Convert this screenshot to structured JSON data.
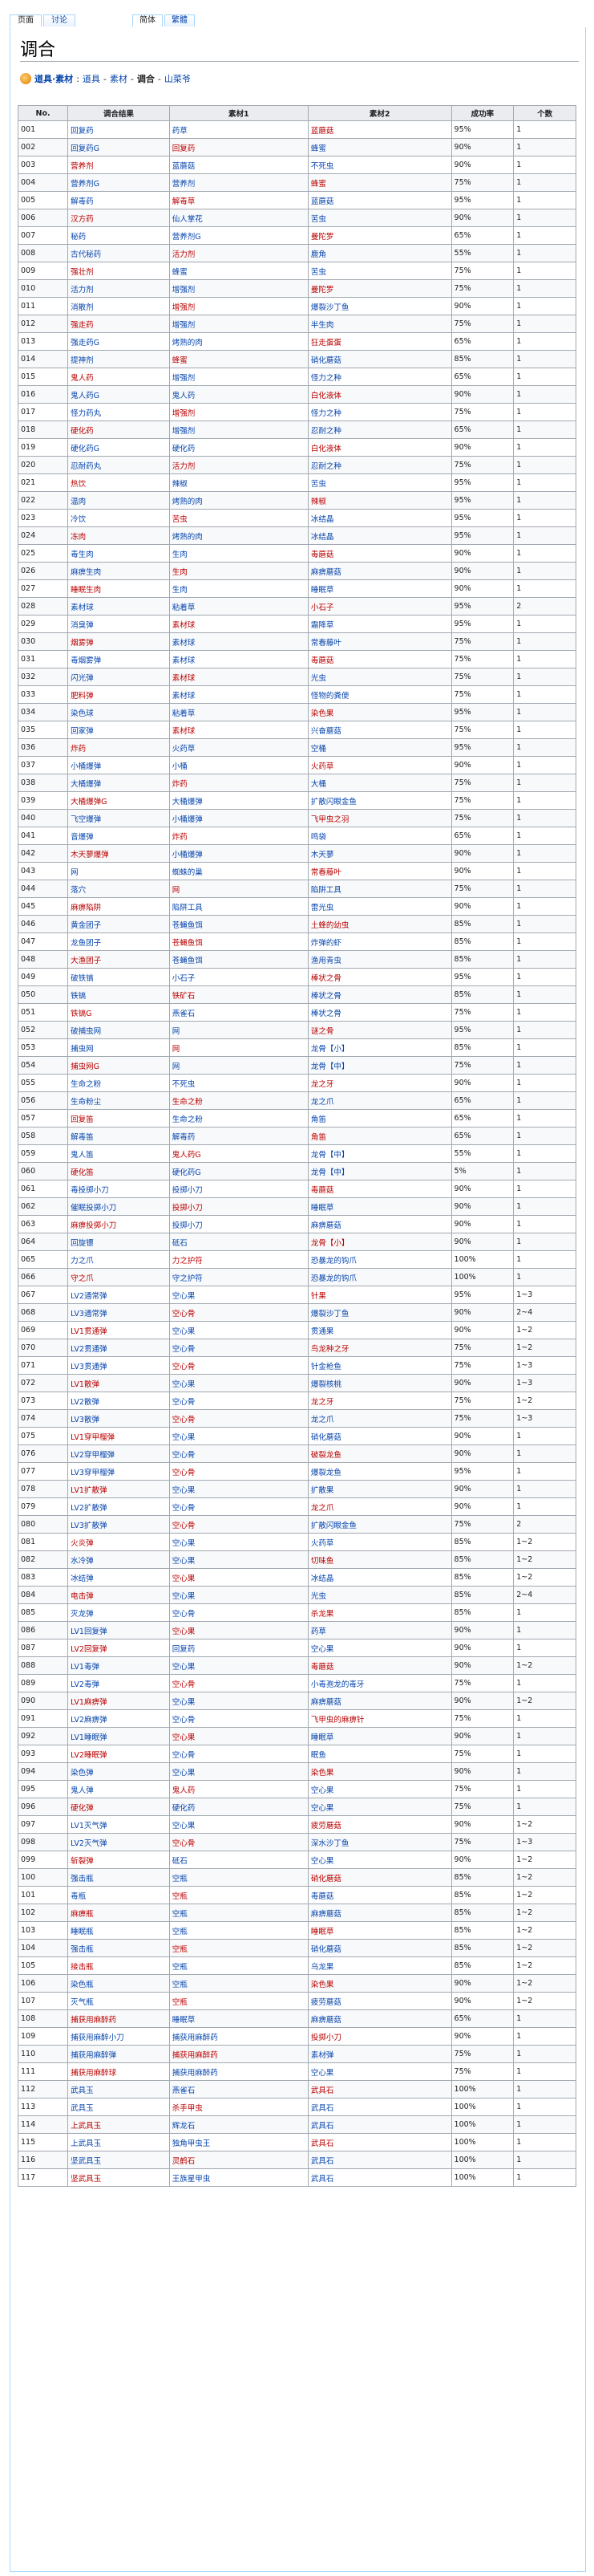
{
  "tabs": {
    "page": "页面",
    "talk": "讨论",
    "simplified": "简体",
    "traditional": "繁體"
  },
  "page_title": "调合",
  "breadcrumb": {
    "root": "道具·素材",
    "sep1": ":",
    "l1": "道具",
    "sep2": "-",
    "l2": "素材",
    "sep3": "-",
    "current": "调合",
    "sep4": "-",
    "l3": "山菜爷"
  },
  "table": {
    "headers": [
      "No.",
      "调合结果",
      "素材1",
      "素材2",
      "成功率",
      "个数"
    ],
    "rows": [
      [
        "001",
        "回复药",
        "药草",
        "蓝蘑菇",
        "95%",
        "1"
      ],
      [
        "002",
        "回复药G",
        "回复药",
        "蜂蜜",
        "90%",
        "1"
      ],
      [
        "003",
        "营养剂",
        "蓝蘑菇",
        "不死虫",
        "90%",
        "1"
      ],
      [
        "004",
        "营养剂G",
        "营养剂",
        "蜂蜜",
        "75%",
        "1"
      ],
      [
        "005",
        "解毒药",
        "解毒草",
        "蓝蘑菇",
        "95%",
        "1"
      ],
      [
        "006",
        "汉方药",
        "仙人掌花",
        "苦虫",
        "90%",
        "1"
      ],
      [
        "007",
        "秘药",
        "营养剂G",
        "曼陀罗",
        "65%",
        "1"
      ],
      [
        "008",
        "古代秘药",
        "活力剂",
        "鹿角",
        "55%",
        "1"
      ],
      [
        "009",
        "强壮剂",
        "蜂蜜",
        "苦虫",
        "75%",
        "1"
      ],
      [
        "010",
        "活力剂",
        "增强剂",
        "曼陀罗",
        "75%",
        "1"
      ],
      [
        "011",
        "消散剂",
        "增强剂",
        "爆裂沙丁鱼",
        "90%",
        "1"
      ],
      [
        "012",
        "强走药",
        "增强剂",
        "半生肉",
        "75%",
        "1"
      ],
      [
        "013",
        "强走药G",
        "烤熟的肉",
        "狂走蛋蛋",
        "65%",
        "1"
      ],
      [
        "014",
        "提神剂",
        "蜂蜜",
        "硝化蘑菇",
        "85%",
        "1"
      ],
      [
        "015",
        "鬼人药",
        "增强剂",
        "怪力之种",
        "65%",
        "1"
      ],
      [
        "016",
        "鬼人药G",
        "鬼人药",
        "白化液体",
        "90%",
        "1"
      ],
      [
        "017",
        "怪力药丸",
        "增强剂",
        "怪力之种",
        "75%",
        "1"
      ],
      [
        "018",
        "硬化药",
        "增强剂",
        "忍耐之种",
        "65%",
        "1"
      ],
      [
        "019",
        "硬化药G",
        "硬化药",
        "白化液体",
        "90%",
        "1"
      ],
      [
        "020",
        "忍耐药丸",
        "活力剂",
        "忍耐之种",
        "75%",
        "1"
      ],
      [
        "021",
        "热饮",
        "辣椒",
        "苦虫",
        "95%",
        "1"
      ],
      [
        "022",
        "温肉",
        "烤熟的肉",
        "辣椒",
        "95%",
        "1"
      ],
      [
        "023",
        "冷饮",
        "苦虫",
        "冰结晶",
        "95%",
        "1"
      ],
      [
        "024",
        "冻肉",
        "烤熟的肉",
        "冰结晶",
        "95%",
        "1"
      ],
      [
        "025",
        "毒生肉",
        "生肉",
        "毒蘑菇",
        "90%",
        "1"
      ],
      [
        "026",
        "麻痹生肉",
        "生肉",
        "麻痹蘑菇",
        "90%",
        "1"
      ],
      [
        "027",
        "睡眠生肉",
        "生肉",
        "睡眠草",
        "90%",
        "1"
      ],
      [
        "028",
        "素材球",
        "粘着草",
        "小石子",
        "95%",
        "2"
      ],
      [
        "029",
        "消臭弹",
        "素材球",
        "霜降草",
        "95%",
        "1"
      ],
      [
        "030",
        "烟雾弹",
        "素材球",
        "常春藤叶",
        "75%",
        "1"
      ],
      [
        "031",
        "毒烟雾弹",
        "素材球",
        "毒蘑菇",
        "75%",
        "1"
      ],
      [
        "032",
        "闪光弹",
        "素材球",
        "光虫",
        "75%",
        "1"
      ],
      [
        "033",
        "肥料弹",
        "素材球",
        "怪物的粪便",
        "75%",
        "1"
      ],
      [
        "034",
        "染色球",
        "粘着草",
        "染色果",
        "95%",
        "1"
      ],
      [
        "035",
        "回家弹",
        "素材球",
        "兴奋蘑菇",
        "75%",
        "1"
      ],
      [
        "036",
        "炸药",
        "火药草",
        "空桶",
        "95%",
        "1"
      ],
      [
        "037",
        "小桶爆弹",
        "小桶",
        "火药草",
        "90%",
        "1"
      ],
      [
        "038",
        "大桶爆弹",
        "炸药",
        "大桶",
        "75%",
        "1"
      ],
      [
        "039",
        "大桶爆弹G",
        "大桶爆弹",
        "扩散闪眼金鱼",
        "75%",
        "1"
      ],
      [
        "040",
        "飞空爆弹",
        "小桶爆弹",
        "飞甲虫之羽",
        "75%",
        "1"
      ],
      [
        "041",
        "音爆弹",
        "炸药",
        "鸣袋",
        "65%",
        "1"
      ],
      [
        "042",
        "木天蓼爆弹",
        "小桶爆弹",
        "木天蓼",
        "90%",
        "1"
      ],
      [
        "043",
        "网",
        "蜘蛛的巢",
        "常春藤叶",
        "90%",
        "1"
      ],
      [
        "044",
        "落穴",
        "网",
        "陷阱工具",
        "75%",
        "1"
      ],
      [
        "045",
        "麻痹陷阱",
        "陷阱工具",
        "雷光虫",
        "90%",
        "1"
      ],
      [
        "046",
        "黄金团子",
        "苍蝇鱼饵",
        "土蜂的幼虫",
        "85%",
        "1"
      ],
      [
        "047",
        "龙鱼团子",
        "苍蝇鱼饵",
        "炸弹的虾",
        "85%",
        "1"
      ],
      [
        "048",
        "大渔团子",
        "苍蝇鱼饵",
        "渔用青虫",
        "85%",
        "1"
      ],
      [
        "049",
        "破铁镐",
        "小石子",
        "棒状之骨",
        "95%",
        "1"
      ],
      [
        "050",
        "铁镐",
        "铁矿石",
        "棒状之骨",
        "85%",
        "1"
      ],
      [
        "051",
        "铁镐G",
        "燕雀石",
        "棒状之骨",
        "75%",
        "1"
      ],
      [
        "052",
        "破捕虫网",
        "网",
        "谜之骨",
        "95%",
        "1"
      ],
      [
        "053",
        "捕虫网",
        "网",
        "龙骨【小】",
        "85%",
        "1"
      ],
      [
        "054",
        "捕虫网G",
        "网",
        "龙骨【中】",
        "75%",
        "1"
      ],
      [
        "055",
        "生命之粉",
        "不死虫",
        "龙之牙",
        "90%",
        "1"
      ],
      [
        "056",
        "生命粉尘",
        "生命之粉",
        "龙之爪",
        "65%",
        "1"
      ],
      [
        "057",
        "回复笛",
        "生命之粉",
        "角笛",
        "65%",
        "1"
      ],
      [
        "058",
        "解毒笛",
        "解毒药",
        "角笛",
        "65%",
        "1"
      ],
      [
        "059",
        "鬼人笛",
        "鬼人药G",
        "龙骨【中】",
        "55%",
        "1"
      ],
      [
        "060",
        "硬化笛",
        "硬化药G",
        "龙骨【中】",
        "5%",
        "1"
      ],
      [
        "061",
        "毒投掷小刀",
        "投掷小刀",
        "毒蘑菇",
        "90%",
        "1"
      ],
      [
        "062",
        "催眠投掷小刀",
        "投掷小刀",
        "睡眠草",
        "90%",
        "1"
      ],
      [
        "063",
        "麻痹投掷小刀",
        "投掷小刀",
        "麻痹蘑菇",
        "90%",
        "1"
      ],
      [
        "064",
        "回旋镖",
        "砥石",
        "龙骨【小】",
        "90%",
        "1"
      ],
      [
        "065",
        "力之爪",
        "力之护符",
        "恐暴龙的钩爪",
        "100%",
        "1"
      ],
      [
        "066",
        "守之爪",
        "守之护符",
        "恐暴龙的钩爪",
        "100%",
        "1"
      ],
      [
        "067",
        "LV2通常弹",
        "空心果",
        "针果",
        "95%",
        "1~3"
      ],
      [
        "068",
        "LV3通常弹",
        "空心骨",
        "爆裂沙丁鱼",
        "90%",
        "2~4"
      ],
      [
        "069",
        "LV1贯通弹",
        "空心果",
        "贯通果",
        "90%",
        "1~2"
      ],
      [
        "070",
        "LV2贯通弹",
        "空心骨",
        "鸟龙种之牙",
        "75%",
        "1~2"
      ],
      [
        "071",
        "LV3贯通弹",
        "空心骨",
        "针金枪鱼",
        "75%",
        "1~3"
      ],
      [
        "072",
        "LV1散弹",
        "空心果",
        "爆裂核桃",
        "90%",
        "1~3"
      ],
      [
        "073",
        "LV2散弹",
        "空心骨",
        "龙之牙",
        "75%",
        "1~2"
      ],
      [
        "074",
        "LV3散弹",
        "空心骨",
        "龙之爪",
        "75%",
        "1~3"
      ],
      [
        "075",
        "LV1穿甲榴弹",
        "空心果",
        "硝化蘑菇",
        "90%",
        "1"
      ],
      [
        "076",
        "LV2穿甲榴弹",
        "空心骨",
        "破裂龙鱼",
        "90%",
        "1"
      ],
      [
        "077",
        "LV3穿甲榴弹",
        "空心骨",
        "爆裂龙鱼",
        "95%",
        "1"
      ],
      [
        "078",
        "LV1扩散弹",
        "空心果",
        "扩散果",
        "90%",
        "1"
      ],
      [
        "079",
        "LV2扩散弹",
        "空心骨",
        "龙之爪",
        "90%",
        "1"
      ],
      [
        "080",
        "LV3扩散弹",
        "空心骨",
        "扩散闪眼金鱼",
        "75%",
        "2"
      ],
      [
        "081",
        "火炎弹",
        "空心果",
        "火药草",
        "85%",
        "1~2"
      ],
      [
        "082",
        "水冷弹",
        "空心果",
        "切味鱼",
        "85%",
        "1~2"
      ],
      [
        "083",
        "冰结弹",
        "空心果",
        "冰结晶",
        "85%",
        "1~2"
      ],
      [
        "084",
        "电击弹",
        "空心果",
        "光虫",
        "85%",
        "2~4"
      ],
      [
        "085",
        "灭龙弹",
        "空心骨",
        "杀龙果",
        "85%",
        "1"
      ],
      [
        "086",
        "LV1回复弹",
        "空心果",
        "药草",
        "90%",
        "1"
      ],
      [
        "087",
        "LV2回复弹",
        "回复药",
        "空心果",
        "90%",
        "1"
      ],
      [
        "088",
        "LV1毒弹",
        "空心果",
        "毒蘑菇",
        "90%",
        "1~2"
      ],
      [
        "089",
        "LV2毒弹",
        "空心骨",
        "小毒孢龙的毒牙",
        "75%",
        "1"
      ],
      [
        "090",
        "LV1麻痹弹",
        "空心果",
        "麻痹蘑菇",
        "90%",
        "1~2"
      ],
      [
        "091",
        "LV2麻痹弹",
        "空心骨",
        "飞甲虫的麻痹针",
        "75%",
        "1"
      ],
      [
        "092",
        "LV1睡眠弹",
        "空心果",
        "睡眠草",
        "90%",
        "1"
      ],
      [
        "093",
        "LV2睡眠弹",
        "空心骨",
        "眠鱼",
        "75%",
        "1"
      ],
      [
        "094",
        "染色弹",
        "空心果",
        "染色果",
        "90%",
        "1"
      ],
      [
        "095",
        "鬼人弹",
        "鬼人药",
        "空心果",
        "75%",
        "1"
      ],
      [
        "096",
        "硬化弹",
        "硬化药",
        "空心果",
        "75%",
        "1"
      ],
      [
        "097",
        "LV1灭气弹",
        "空心果",
        "疲劳蘑菇",
        "90%",
        "1~2"
      ],
      [
        "098",
        "LV2灭气弹",
        "空心骨",
        "深水沙丁鱼",
        "75%",
        "1~3"
      ],
      [
        "099",
        "斩裂弹",
        "砥石",
        "空心果",
        "90%",
        "1~2"
      ],
      [
        "100",
        "强击瓶",
        "空瓶",
        "硝化蘑菇",
        "85%",
        "1~2"
      ],
      [
        "101",
        "毒瓶",
        "空瓶",
        "毒蘑菇",
        "85%",
        "1~2"
      ],
      [
        "102",
        "麻痹瓶",
        "空瓶",
        "麻痹蘑菇",
        "85%",
        "1~2"
      ],
      [
        "103",
        "睡眠瓶",
        "空瓶",
        "睡眠草",
        "85%",
        "1~2"
      ],
      [
        "104",
        "强击瓶",
        "空瓶",
        "硝化蘑菇",
        "85%",
        "1~2"
      ],
      [
        "105",
        "接击瓶",
        "空瓶",
        "乌龙果",
        "85%",
        "1~2"
      ],
      [
        "106",
        "染色瓶",
        "空瓶",
        "染色果",
        "90%",
        "1~2"
      ],
      [
        "107",
        "灭气瓶",
        "空瓶",
        "疲劳蘑菇",
        "90%",
        "1~2"
      ],
      [
        "108",
        "捕获用麻醉药",
        "睡眠草",
        "麻痹蘑菇",
        "65%",
        "1"
      ],
      [
        "109",
        "捕获用麻醉小刀",
        "捕获用麻醉药",
        "投掷小刀",
        "90%",
        "1"
      ],
      [
        "110",
        "捕获用麻醉弹",
        "捕获用麻醉药",
        "素材弹",
        "75%",
        "1"
      ],
      [
        "111",
        "捕获用麻醉球",
        "捕获用麻醉药",
        "空心果",
        "75%",
        "1"
      ],
      [
        "112",
        "武具玉",
        "燕雀石",
        "武具石",
        "100%",
        "1"
      ],
      [
        "113",
        "武具玉",
        "杀手甲虫",
        "武具石",
        "100%",
        "1"
      ],
      [
        "114",
        "上武具玉",
        "辉龙石",
        "武具石",
        "100%",
        "1"
      ],
      [
        "115",
        "上武具玉",
        "独角甲虫王",
        "武具石",
        "100%",
        "1"
      ],
      [
        "116",
        "坚武具玉",
        "灵鹤石",
        "武具石",
        "100%",
        "1"
      ],
      [
        "117",
        "坚武具玉",
        "王族星甲虫",
        "武具石",
        "100%",
        "1"
      ]
    ]
  },
  "colors": {
    "link": "#0645ad",
    "redlink": "#ba0000",
    "border": "#a2a9b1",
    "header_bg": "#eaecf0"
  }
}
